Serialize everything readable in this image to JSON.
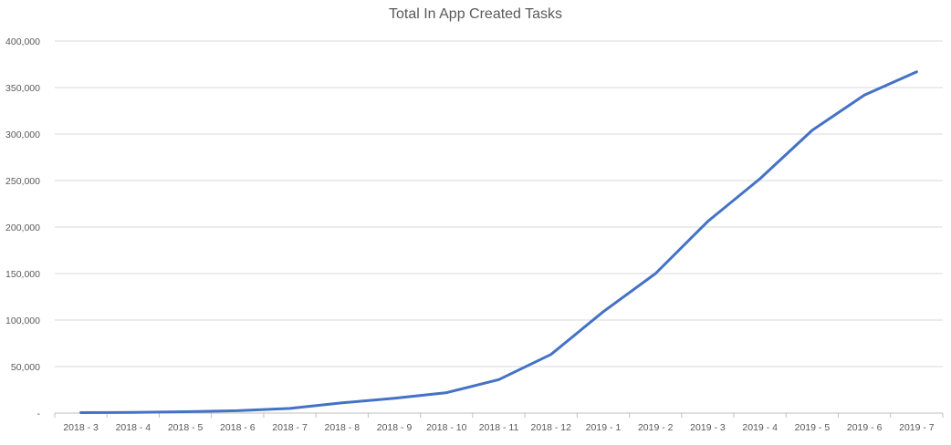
{
  "chart_data": {
    "type": "line",
    "title": "Total In App Created Tasks",
    "xlabel": "",
    "ylabel": "",
    "categories": [
      "2018 - 3",
      "2018 - 4",
      "2018 - 5",
      "2018 - 6",
      "2018 - 7",
      "2018 - 8",
      "2018 - 9",
      "2018 - 10",
      "2018 - 11",
      "2018 - 12",
      "2019 - 1",
      "2019 - 2",
      "2019 - 3",
      "2019 - 4",
      "2019 - 5",
      "2019 - 6",
      "2019 - 7"
    ],
    "y_tick_labels": [
      "-",
      "50,000",
      "100,000",
      "150,000",
      "200,000",
      "250,000",
      "300,000",
      "350,000",
      "400,000"
    ],
    "y_ticks": [
      0,
      50000,
      100000,
      150000,
      200000,
      250000,
      300000,
      350000,
      400000
    ],
    "ylim": [
      0,
      400000
    ],
    "grid": true,
    "legend": "none",
    "series": [
      {
        "values": [
          500,
          700,
          1500,
          2500,
          5000,
          11000,
          16000,
          22000,
          36000,
          63000,
          109000,
          150000,
          206000,
          252000,
          304000,
          342000,
          367000
        ],
        "color": "#4472C4"
      }
    ]
  }
}
